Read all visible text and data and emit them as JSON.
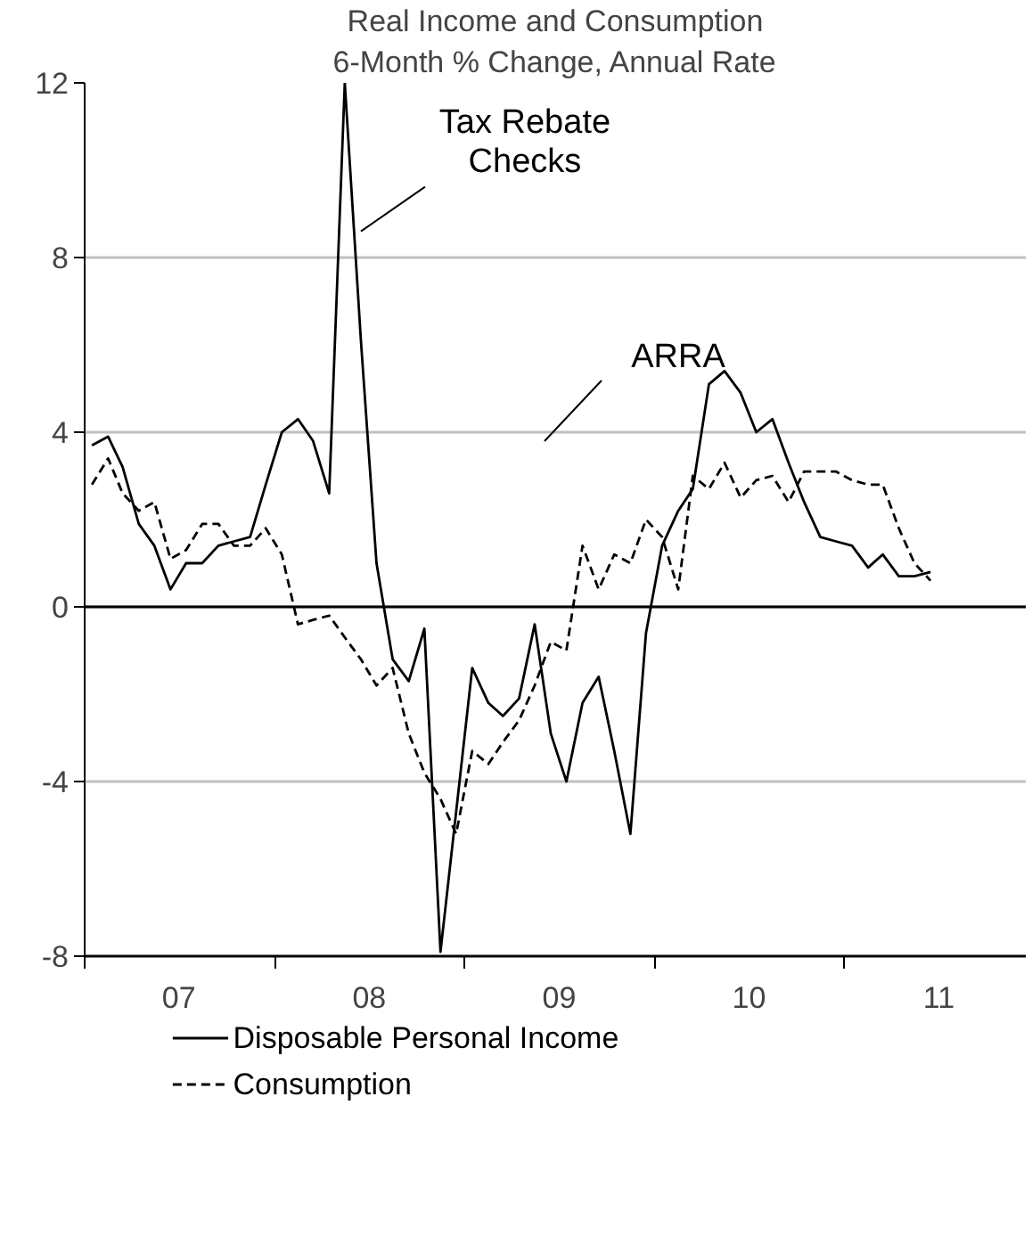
{
  "chart_data": {
    "type": "line",
    "title": "Real Income and Consumption",
    "subtitle": "6-Month % Change, Annual Rate",
    "x": [
      "2007-01-15",
      "2007-02-15",
      "2007-03-15",
      "2007-04-15",
      "2007-05-15",
      "2007-06-15",
      "2007-07-15",
      "2007-08-15",
      "2007-09-15",
      "2007-10-15",
      "2007-11-15",
      "2007-12-15",
      "2008-01-15",
      "2008-02-15",
      "2008-03-15",
      "2008-04-15",
      "2008-05-15",
      "2008-06-15",
      "2008-07-15",
      "2008-08-15",
      "2008-09-15",
      "2008-10-15",
      "2008-11-15",
      "2008-12-15",
      "2009-01-15",
      "2009-02-15",
      "2009-03-15",
      "2009-04-15",
      "2009-05-15",
      "2009-06-15",
      "2009-07-15",
      "2009-08-15",
      "2009-09-15",
      "2009-10-15",
      "2009-11-15",
      "2009-12-15",
      "2010-01-15",
      "2010-02-15",
      "2010-03-15",
      "2010-04-15",
      "2010-05-15",
      "2010-06-15",
      "2010-07-15",
      "2010-08-15",
      "2010-09-15",
      "2010-10-15",
      "2010-11-15",
      "2010-12-15",
      "2011-01-15",
      "2011-02-15",
      "2011-03-15",
      "2011-04-15",
      "2011-05-15",
      "2011-06-15"
    ],
    "series": [
      {
        "name": "Disposable Personal Income",
        "color": "#000000",
        "line_style": "solid",
        "values": [
          3.7,
          3.9,
          3.2,
          1.9,
          1.4,
          0.4,
          1.0,
          1.0,
          1.4,
          1.5,
          1.6,
          2.8,
          4.0,
          4.3,
          3.8,
          2.6,
          12.0,
          6.1,
          1.0,
          -1.2,
          -1.7,
          -0.5,
          -7.9,
          -4.7,
          -1.4,
          -2.2,
          -2.5,
          -2.1,
          -0.4,
          -2.9,
          -4.0,
          -2.2,
          -1.6,
          -3.3,
          -5.2,
          -0.6,
          1.4,
          2.2,
          2.7,
          5.1,
          5.4,
          4.9,
          4.0,
          4.3,
          3.3,
          2.4,
          1.6,
          1.5,
          1.4,
          0.9,
          1.2,
          0.7,
          0.7,
          0.8
        ]
      },
      {
        "name": "Consumption",
        "color": "#000000",
        "line_style": "dashed",
        "values": [
          2.8,
          3.4,
          2.6,
          2.2,
          2.4,
          1.1,
          1.3,
          1.9,
          1.9,
          1.4,
          1.4,
          1.8,
          1.2,
          -0.4,
          -0.3,
          -0.2,
          -0.7,
          -1.2,
          -1.8,
          -1.4,
          -2.9,
          -3.8,
          -4.4,
          -5.2,
          -3.3,
          -3.6,
          -3.1,
          -2.6,
          -1.8,
          -0.8,
          -1.0,
          1.4,
          0.4,
          1.2,
          1.0,
          2.0,
          1.6,
          0.4,
          3.0,
          2.7,
          3.3,
          2.5,
          2.9,
          3.0,
          2.4,
          3.1,
          3.1,
          3.1,
          2.9,
          2.8,
          2.8,
          1.8,
          1.0,
          0.6
        ]
      }
    ],
    "xlim": [
      "2007-01-01",
      "2011-12-15"
    ],
    "xticks": [
      {
        "value": "2007-01-01",
        "label": null
      },
      {
        "value": "2007-07-01",
        "label": "07"
      },
      {
        "value": "2008-01-01",
        "label": null
      },
      {
        "value": "2008-07-01",
        "label": "08"
      },
      {
        "value": "2009-01-01",
        "label": null
      },
      {
        "value": "2009-07-01",
        "label": "09"
      },
      {
        "value": "2010-01-01",
        "label": null
      },
      {
        "value": "2010-07-01",
        "label": "10"
      },
      {
        "value": "2011-01-01",
        "label": null
      },
      {
        "value": "2011-07-01",
        "label": "11"
      }
    ],
    "ylim": [
      -8,
      12
    ],
    "yticks": [
      -8,
      -4,
      0,
      4,
      8,
      12
    ],
    "grid": "y",
    "legend": "bottom",
    "ref_lines": [
      {
        "axis": "y",
        "value": 0,
        "color": "#000000"
      }
    ],
    "annotations": [
      {
        "text": "Tax Rebate\nChecks",
        "x": "2008-06-15",
        "y": 8.6
      },
      "ARRA"
    ]
  }
}
